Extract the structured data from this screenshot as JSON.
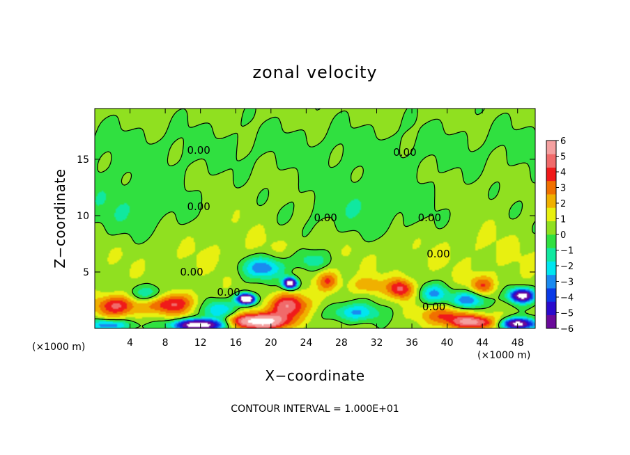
{
  "chart_data": {
    "type": "heatmap",
    "title": "zonal velocity",
    "xlabel": "X−coordinate",
    "ylabel": "Z−coordinate",
    "x_unit": "(×1000 m)",
    "y_unit": "(×1000 m)",
    "xlim": [
      0,
      50
    ],
    "ylim": [
      0,
      19.5
    ],
    "x_ticks": [
      4,
      8,
      12,
      16,
      20,
      24,
      28,
      32,
      36,
      40,
      44,
      48
    ],
    "y_ticks": [
      5,
      10,
      15
    ],
    "colorbar": {
      "range": [
        -6,
        6
      ],
      "ticks": [
        6,
        5,
        4,
        3,
        2,
        1,
        0,
        -1,
        -2,
        -3,
        -4,
        -5,
        -6
      ],
      "tick_labels": [
        "6",
        "5",
        "4",
        "3",
        "2",
        "1",
        "0",
        "−1",
        "−2",
        "−3",
        "−4",
        "−5",
        "−6"
      ],
      "colors": [
        "#6a0a9a",
        "#2a0acc",
        "#0a3ae6",
        "#1a8af0",
        "#00e6f0",
        "#10e8a0",
        "#30e040",
        "#90e020",
        "#e8f010",
        "#f0b000",
        "#f07000",
        "#f01a1a",
        "#f06a6a",
        "#f4a0a0"
      ]
    },
    "contour_level": 0.0,
    "contour_labels": [
      {
        "text": "0.00",
        "x": 11.8,
        "z": 15.8
      },
      {
        "text": "0.00",
        "x": 35.2,
        "z": 15.6
      },
      {
        "text": "0.00",
        "x": 11.8,
        "z": 10.8
      },
      {
        "text": "0.00",
        "x": 26.2,
        "z": 9.8
      },
      {
        "text": "0.00",
        "x": 38.0,
        "z": 9.8
      },
      {
        "text": "0.00",
        "x": 39.0,
        "z": 6.6
      },
      {
        "text": "0.00",
        "x": 11.0,
        "z": 5.0
      },
      {
        "text": "0.00",
        "x": 15.2,
        "z": 3.2
      },
      {
        "text": "0.00",
        "x": 38.5,
        "z": 1.9
      }
    ],
    "footer": "CONTOUR INTERVAL =  1.000E+01",
    "grid": false
  }
}
